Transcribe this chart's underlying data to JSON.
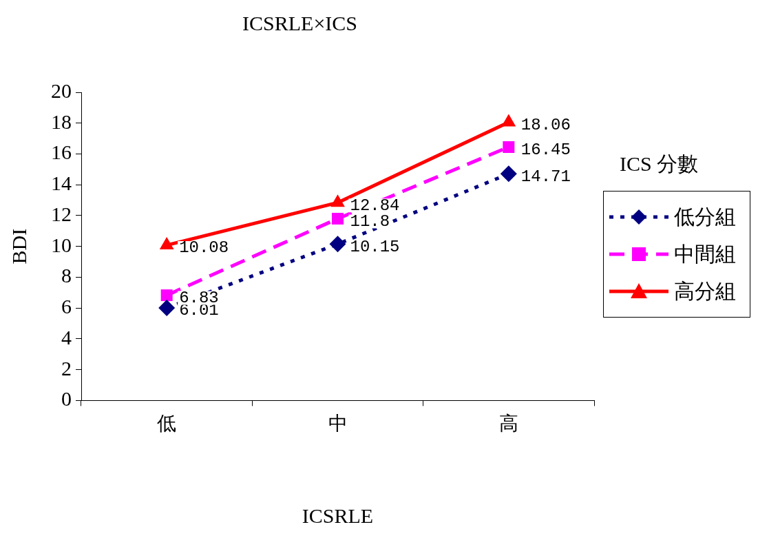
{
  "chart_data": {
    "type": "line",
    "title": "ICSRLE×ICS",
    "xlabel": "ICSRLE",
    "ylabel": "BDI",
    "legend_title": "ICS 分數",
    "categories": [
      "低",
      "中",
      "高"
    ],
    "series": [
      {
        "name": "低分組",
        "color": "#000080",
        "values": [
          6.01,
          10.15,
          14.71
        ],
        "marker": "diamond",
        "line_style": "dotted"
      },
      {
        "name": "中間組",
        "color": "#ff00ff",
        "values": [
          6.83,
          11.8,
          16.45
        ],
        "marker": "square",
        "line_style": "dashed"
      },
      {
        "name": "高分組",
        "color": "#ff0000",
        "values": [
          10.08,
          12.84,
          18.06
        ],
        "marker": "triangle",
        "line_style": "solid"
      }
    ],
    "ylim": [
      0,
      20
    ],
    "yticks": [
      0,
      2,
      4,
      6,
      8,
      10,
      12,
      14,
      16,
      18,
      20
    ],
    "grid": false,
    "legend": "right",
    "data_labels": true
  }
}
